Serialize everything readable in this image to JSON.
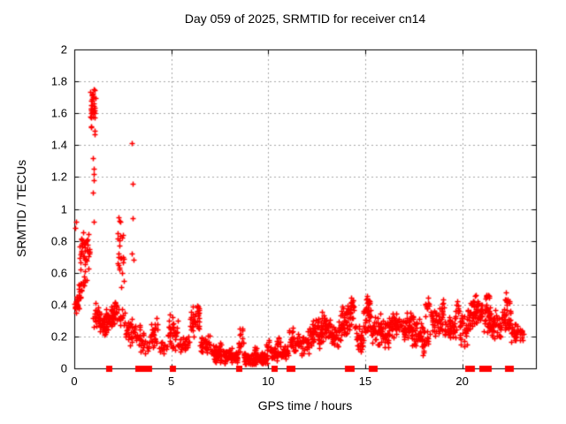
{
  "chart_data": {
    "type": "scatter",
    "title": "Day 059 of 2025, SRMTID for receiver cn14",
    "xlabel": "GPS time / hours",
    "ylabel": "SRMTID / TECUs",
    "xlim": [
      0,
      23.8
    ],
    "ylim": [
      0,
      2
    ],
    "xticks": [
      {
        "value": 0,
        "label": "0"
      },
      {
        "value": 5,
        "label": "5"
      },
      {
        "value": 10,
        "label": "10"
      },
      {
        "value": 15,
        "label": "15"
      },
      {
        "value": 20,
        "label": "20"
      }
    ],
    "yticks": [
      {
        "value": 0,
        "label": "0"
      },
      {
        "value": 0.2,
        "label": "0.2"
      },
      {
        "value": 0.4,
        "label": "0.4"
      },
      {
        "value": 0.6,
        "label": "0.6"
      },
      {
        "value": 0.8,
        "label": "0.8"
      },
      {
        "value": 1,
        "label": "1"
      },
      {
        "value": 1.2,
        "label": "1.2"
      },
      {
        "value": 1.4,
        "label": "1.4"
      },
      {
        "value": 1.6,
        "label": "1.6"
      },
      {
        "value": 1.8,
        "label": "1.8"
      },
      {
        "value": 2,
        "label": "2"
      }
    ],
    "grid": true,
    "legend": "none",
    "marker_color": "#ff0000",
    "grid_color": "#a8a8a8",
    "axis_color": "#000000",
    "series": [
      {
        "name": "SRMTID",
        "marker": "plus",
        "cluster_format": "[t_start_h, t_end_h, y_center_TECU, y_half_spread_TECU, n_points]",
        "clusters": [
          [
            0.0,
            0.18,
            0.39,
            0.05,
            16
          ],
          [
            0.1,
            0.32,
            0.42,
            0.06,
            12
          ],
          [
            0.18,
            0.42,
            0.5,
            0.05,
            8
          ],
          [
            0.28,
            0.78,
            0.73,
            0.13,
            42
          ],
          [
            0.45,
            0.68,
            0.53,
            0.05,
            6
          ],
          [
            0.82,
            1.1,
            1.63,
            0.16,
            36
          ],
          [
            0.95,
            1.3,
            0.33,
            0.08,
            22
          ],
          [
            1.25,
            1.65,
            0.27,
            0.08,
            30
          ],
          [
            1.6,
            1.95,
            0.3,
            0.08,
            30
          ],
          [
            1.9,
            2.2,
            0.35,
            0.09,
            32
          ],
          [
            2.22,
            2.55,
            0.7,
            0.2,
            22
          ],
          [
            2.22,
            2.6,
            0.33,
            0.08,
            12
          ],
          [
            2.55,
            3.0,
            0.22,
            0.1,
            28
          ],
          [
            3.0,
            3.4,
            0.2,
            0.07,
            18
          ],
          [
            3.4,
            3.9,
            0.16,
            0.07,
            20
          ],
          [
            3.88,
            4.3,
            0.22,
            0.09,
            28
          ],
          [
            4.3,
            4.8,
            0.12,
            0.06,
            14
          ],
          [
            4.8,
            5.35,
            0.22,
            0.11,
            38
          ],
          [
            5.35,
            5.95,
            0.15,
            0.06,
            26
          ],
          [
            5.95,
            6.45,
            0.3,
            0.11,
            38
          ],
          [
            6.45,
            7.0,
            0.15,
            0.07,
            32
          ],
          [
            7.0,
            7.8,
            0.09,
            0.05,
            60
          ],
          [
            7.45,
            7.6,
            0.14,
            0.04,
            6
          ],
          [
            7.8,
            8.45,
            0.08,
            0.04,
            52
          ],
          [
            8.45,
            8.72,
            0.16,
            0.09,
            16
          ],
          [
            8.72,
            9.4,
            0.06,
            0.04,
            55
          ],
          [
            9.25,
            9.4,
            0.11,
            0.04,
            6
          ],
          [
            9.4,
            9.95,
            0.06,
            0.035,
            50
          ],
          [
            9.9,
            10.15,
            0.12,
            0.06,
            12
          ],
          [
            10.1,
            10.7,
            0.09,
            0.05,
            35
          ],
          [
            10.42,
            10.62,
            0.17,
            0.05,
            8
          ],
          [
            10.7,
            11.05,
            0.1,
            0.05,
            24
          ],
          [
            11.05,
            11.35,
            0.19,
            0.08,
            20
          ],
          [
            11.35,
            12.1,
            0.16,
            0.07,
            45
          ],
          [
            12.1,
            12.7,
            0.22,
            0.08,
            48
          ],
          [
            12.7,
            13.2,
            0.26,
            0.09,
            45
          ],
          [
            13.2,
            13.7,
            0.21,
            0.08,
            36
          ],
          [
            13.7,
            14.05,
            0.28,
            0.11,
            32
          ],
          [
            14.05,
            14.45,
            0.33,
            0.09,
            28
          ],
          [
            14.18,
            14.38,
            0.41,
            0.04,
            8
          ],
          [
            14.45,
            14.9,
            0.18,
            0.08,
            32
          ],
          [
            14.9,
            15.3,
            0.33,
            0.11,
            36
          ],
          [
            15.05,
            15.25,
            0.43,
            0.04,
            8
          ],
          [
            15.3,
            15.8,
            0.24,
            0.09,
            38
          ],
          [
            15.8,
            16.2,
            0.21,
            0.08,
            32
          ],
          [
            16.2,
            16.8,
            0.27,
            0.08,
            46
          ],
          [
            16.8,
            17.4,
            0.26,
            0.08,
            46
          ],
          [
            17.4,
            17.9,
            0.23,
            0.09,
            40
          ],
          [
            17.9,
            18.25,
            0.17,
            0.09,
            24
          ],
          [
            18.1,
            18.35,
            0.38,
            0.08,
            10
          ],
          [
            18.35,
            19.0,
            0.29,
            0.09,
            46
          ],
          [
            18.95,
            19.1,
            0.39,
            0.04,
            6
          ],
          [
            19.1,
            19.7,
            0.25,
            0.08,
            40
          ],
          [
            19.6,
            19.85,
            0.37,
            0.07,
            10
          ],
          [
            19.85,
            20.25,
            0.24,
            0.1,
            28
          ],
          [
            20.25,
            20.6,
            0.33,
            0.1,
            28
          ],
          [
            20.55,
            21.05,
            0.37,
            0.09,
            42
          ],
          [
            21.05,
            21.45,
            0.32,
            0.11,
            30
          ],
          [
            21.2,
            21.4,
            0.45,
            0.04,
            8
          ],
          [
            21.45,
            22.05,
            0.27,
            0.09,
            42
          ],
          [
            22.05,
            22.5,
            0.33,
            0.1,
            36
          ],
          [
            22.18,
            22.38,
            0.44,
            0.04,
            6
          ],
          [
            22.5,
            23.0,
            0.23,
            0.06,
            28
          ],
          [
            23.0,
            23.22,
            0.22,
            0.04,
            8
          ]
        ],
        "extra_points": [
          [
            0.05,
            0.88
          ],
          [
            0.08,
            0.92
          ],
          [
            0.97,
            1.32
          ],
          [
            1.0,
            1.25
          ],
          [
            0.99,
            1.22
          ],
          [
            1.02,
            1.18
          ],
          [
            0.98,
            1.1
          ],
          [
            1.01,
            0.92
          ],
          [
            2.3,
            0.95
          ],
          [
            2.35,
            0.92
          ],
          [
            2.97,
            1.41
          ],
          [
            2.99,
            1.16
          ],
          [
            3.0,
            0.94
          ],
          [
            2.98,
            0.72
          ],
          [
            3.04,
            0.68
          ]
        ]
      },
      {
        "name": "zero flags",
        "marker": "filled-square",
        "y": 0,
        "x": [
          1.8,
          3.3,
          3.38,
          3.46,
          3.56,
          3.85,
          5.05,
          8.5,
          10.3,
          11.1,
          11.2,
          14.1,
          14.25,
          15.3,
          15.45,
          20.3,
          20.45,
          21.0,
          21.1,
          21.35,
          22.35,
          22.5
        ]
      }
    ]
  }
}
